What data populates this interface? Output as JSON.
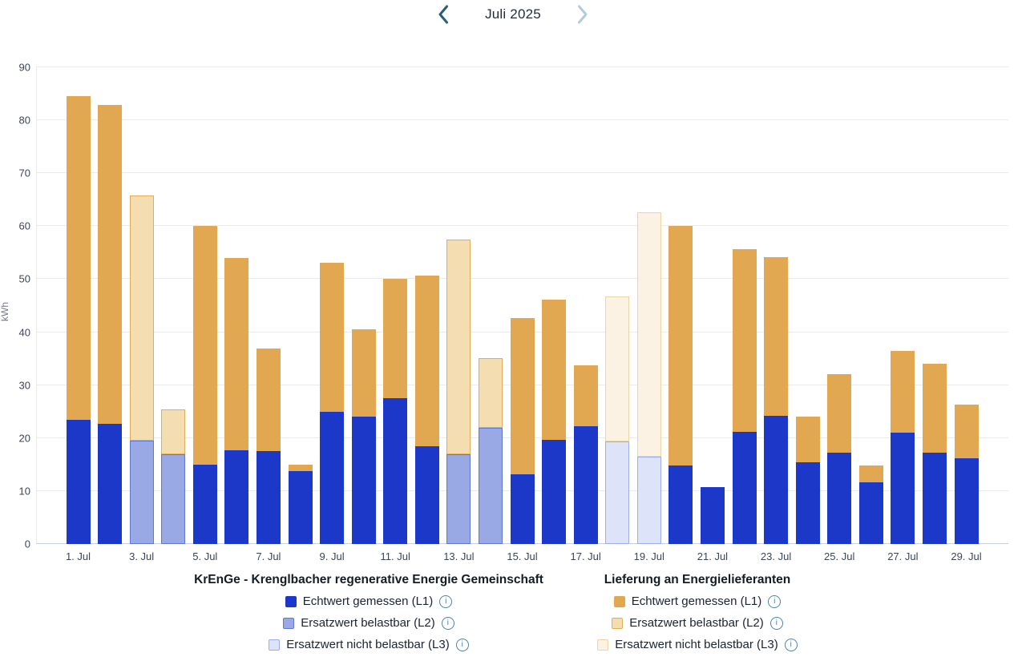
{
  "header": {
    "month_label": "Juli 2025"
  },
  "colors": {
    "nav_active": "#2b5d78",
    "nav_disabled": "#b3ccda",
    "grid": "#e9ebef",
    "axis": "#c9cfd7",
    "krenge": {
      "l1": "#1c38c8",
      "l2_fill": "#98a9e6",
      "l2_border": "#5f78d4",
      "l3_fill": "#dde4fa",
      "l3_border": "#9cade9"
    },
    "lieferung": {
      "l1": "#e1a851",
      "l2_fill": "#f4ddb1",
      "l2_border": "#e3ad58",
      "l3_fill": "#fbf2e3",
      "l3_border": "#ecd4a4"
    }
  },
  "chart_data": {
    "type": "bar",
    "stacked": true,
    "title": "",
    "xlabel": "",
    "ylabel": "kWh",
    "ylim": [
      0,
      90
    ],
    "yticks": [
      0,
      10,
      20,
      30,
      40,
      50,
      60,
      70,
      80,
      90
    ],
    "grid": true,
    "legend_position": "bottom",
    "categories": [
      "1. Jul",
      "2. Jul",
      "3. Jul",
      "4. Jul",
      "5. Jul",
      "6. Jul",
      "7. Jul",
      "8. Jul",
      "9. Jul",
      "10. Jul",
      "11. Jul",
      "12. Jul",
      "13. Jul",
      "14. Jul",
      "15. Jul",
      "16. Jul",
      "17. Jul",
      "18. Jul",
      "19. Jul",
      "20. Jul",
      "21. Jul",
      "22. Jul",
      "23. Jul",
      "24. Jul",
      "25. Jul",
      "26. Jul",
      "27. Jul",
      "28. Jul",
      "29. Jul"
    ],
    "x_shown_ticks": [
      "1. Jul",
      "3. Jul",
      "5. Jul",
      "7. Jul",
      "9. Jul",
      "11. Jul",
      "13. Jul",
      "15. Jul",
      "17. Jul",
      "19. Jul",
      "21. Jul",
      "23. Jul",
      "25. Jul",
      "27. Jul",
      "29. Jul"
    ],
    "series": [
      {
        "name": "KrEnGe Echtwert gemessen (L1)",
        "group": "KrEnGe - Krenglbacher regenerative Energie Gemeinschaft",
        "color": "#1c38c8",
        "border": "",
        "values": [
          23.5,
          22.7,
          0,
          0,
          15.0,
          17.7,
          17.5,
          13.8,
          24.9,
          24.1,
          27.5,
          18.4,
          0,
          0,
          13.2,
          19.6,
          22.2,
          0,
          0,
          14.8,
          10.8,
          21.2,
          24.2,
          15.4,
          17.2,
          11.7,
          21.0,
          17.2,
          16.2
        ]
      },
      {
        "name": "KrEnGe Ersatzwert belastbar (L2)",
        "group": "KrEnGe - Krenglbacher regenerative Energie Gemeinschaft",
        "color": "#98a9e6",
        "border": "#5f78d4",
        "values": [
          0,
          0,
          19.5,
          16.9,
          0,
          0,
          0,
          0,
          0,
          0,
          0,
          0,
          16.9,
          22.0,
          0,
          0,
          0,
          0,
          0,
          0,
          0,
          0,
          0,
          0,
          0,
          0,
          0,
          0,
          0
        ]
      },
      {
        "name": "KrEnGe Ersatzwert nicht belastbar (L3)",
        "group": "KrEnGe - Krenglbacher regenerative Energie Gemeinschaft",
        "color": "#dde4fa",
        "border": "#9cade9",
        "values": [
          0,
          0,
          0,
          0,
          0,
          0,
          0,
          0,
          0,
          0,
          0,
          0,
          0,
          0,
          0,
          0,
          0,
          19.4,
          16.5,
          0,
          0,
          0,
          0,
          0,
          0,
          0,
          0,
          0,
          0
        ]
      },
      {
        "name": "Lieferung Echtwert gemessen (L1)",
        "group": "Lieferung an Energielieferanten",
        "color": "#e1a851",
        "border": "",
        "values": [
          61.0,
          60.2,
          0,
          0,
          45.1,
          36.3,
          19.4,
          1.2,
          28.2,
          16.4,
          22.5,
          32.3,
          0,
          0,
          29.4,
          26.5,
          11.6,
          0,
          0,
          45.3,
          0,
          34.5,
          29.9,
          8.6,
          14.8,
          3.2,
          15.5,
          16.9,
          10.1
        ]
      },
      {
        "name": "Lieferung Ersatzwert belastbar (L2)",
        "group": "Lieferung an Energielieferanten",
        "color": "#f4ddb1",
        "border": "#e3ad58",
        "values": [
          0,
          0,
          46.3,
          8.5,
          0,
          0,
          0,
          0,
          0,
          0,
          0,
          0,
          40.6,
          13.1,
          0,
          0,
          0,
          0,
          0,
          0,
          0,
          0,
          0,
          0,
          0,
          0,
          0,
          0,
          0
        ]
      },
      {
        "name": "Lieferung Ersatzwert nicht belastbar (L3)",
        "group": "Lieferung an Energielieferanten",
        "color": "#fbf2e3",
        "border": "#ecd4a4",
        "values": [
          0,
          0,
          0,
          0,
          0,
          0,
          0,
          0,
          0,
          0,
          0,
          0,
          0,
          0,
          0,
          0,
          0,
          27.3,
          46.1,
          0,
          0,
          0,
          0,
          0,
          0,
          0,
          0,
          0,
          0
        ]
      }
    ]
  },
  "legend": {
    "consumption": {
      "title": "KrEnGe - Krenglbacher regenerative Energie Gemeinschaft",
      "items": [
        {
          "label": "Echtwert gemessen (L1)",
          "info": "i"
        },
        {
          "label": "Ersatzwert belastbar (L2)",
          "info": "i"
        },
        {
          "label": "Ersatzwert nicht belastbar (L3)",
          "info": "i"
        }
      ]
    },
    "delivery": {
      "title": "Lieferung an Energielieferanten",
      "items": [
        {
          "label": "Echtwert gemessen (L1)",
          "info": "i"
        },
        {
          "label": "Ersatzwert belastbar (L2)",
          "info": "i"
        },
        {
          "label": "Ersatzwert nicht belastbar (L3)",
          "info": "i"
        }
      ]
    }
  }
}
